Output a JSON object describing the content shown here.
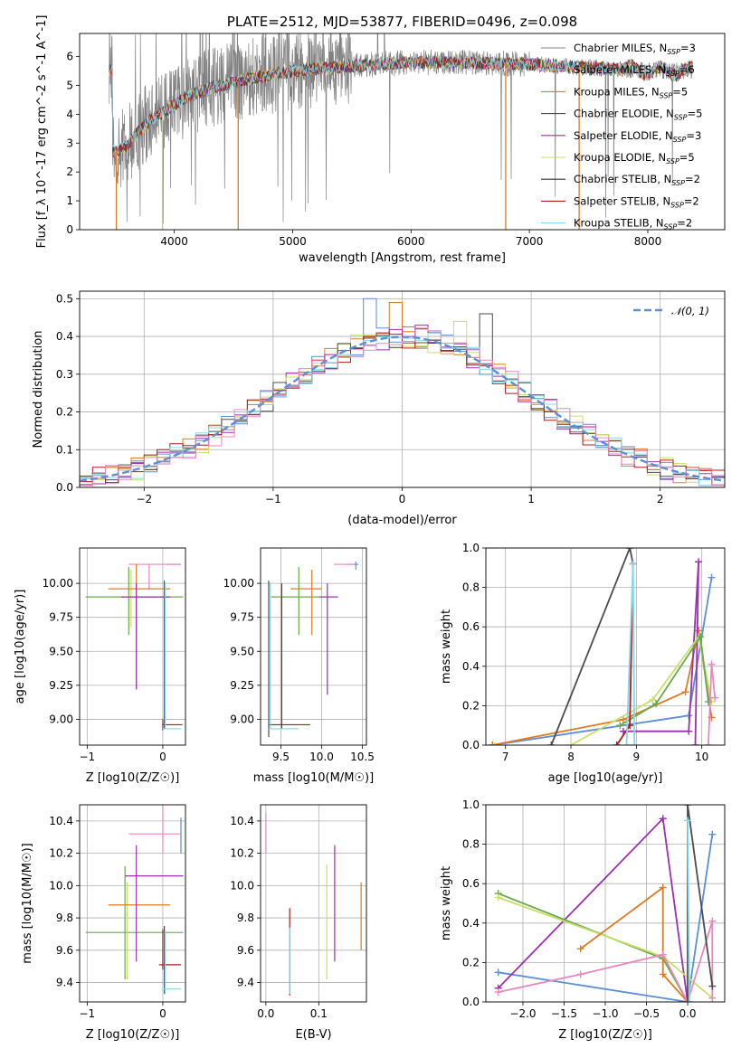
{
  "chart_data": [
    {
      "id": "spectrum",
      "type": "line",
      "title": "PLATE=2512, MJD=53877, FIBERID=0496, z=0.098",
      "xlabel": "wavelength [Angstrom, rest frame]",
      "ylabel": "Flux [f_λ 10^-17 erg cm^-2 s^-1 A^-1]",
      "xlim": [
        3200,
        8650
      ],
      "ylim": [
        0,
        6.8
      ],
      "xticks": [
        4000,
        5000,
        6000,
        7000,
        8000
      ],
      "yticks": [
        0,
        1,
        2,
        3,
        4,
        5,
        6
      ],
      "grid": false,
      "legend_position": "right",
      "observed": {
        "color": "#808080",
        "x_range": [
          3450,
          8380
        ]
      },
      "continuum": [
        [
          3480,
          2.7
        ],
        [
          3600,
          2.9
        ],
        [
          3700,
          3.4
        ],
        [
          3800,
          3.8
        ],
        [
          3950,
          4.2
        ],
        [
          4100,
          4.6
        ],
        [
          4300,
          4.9
        ],
        [
          4500,
          5.1
        ],
        [
          4700,
          5.3
        ],
        [
          5000,
          5.5
        ],
        [
          5300,
          5.6
        ],
        [
          5600,
          5.7
        ],
        [
          6000,
          5.8
        ],
        [
          6400,
          5.8
        ],
        [
          6800,
          5.75
        ],
        [
          7200,
          5.7
        ],
        [
          7600,
          5.6
        ],
        [
          8000,
          5.5
        ],
        [
          8380,
          5.5
        ]
      ],
      "spikes": [
        [
          4540,
          "#e07b22"
        ],
        [
          6800,
          "#e07b22"
        ],
        [
          7420,
          "#e07b22"
        ],
        [
          3900,
          "#b8d96b"
        ],
        [
          3510,
          "#e07b22"
        ]
      ],
      "series": [
        {
          "name": "Chabrier MILES",
          "n_ssp": "3",
          "color": "#808080"
        },
        {
          "name": "Salpeter MILES",
          "n_ssp": "6",
          "color": "#8fd9f0"
        },
        {
          "name": "Kroupa MILES",
          "n_ssp": "5",
          "color": "#e07b22"
        },
        {
          "name": "Chabrier ELODIE",
          "n_ssp": "5",
          "color": "#4d4d4d"
        },
        {
          "name": "Salpeter ELODIE",
          "n_ssp": "3",
          "color": "#9b30b0"
        },
        {
          "name": "Kroupa ELODIE",
          "n_ssp": "5",
          "color": "#c8e068"
        },
        {
          "name": "Chabrier STELIB",
          "n_ssp": "2",
          "color": "#333333"
        },
        {
          "name": "Salpeter STELIB",
          "n_ssp": "2",
          "color": "#b01c1c"
        },
        {
          "name": "Kroupa STELIB",
          "n_ssp": "2",
          "color": "#86d8e8"
        }
      ]
    },
    {
      "id": "residuals",
      "type": "line",
      "xlabel": "(data-model)/error",
      "ylabel": "Normed distribution",
      "xlim": [
        -2.5,
        2.5
      ],
      "ylim": [
        0,
        0.52
      ],
      "xticks": [
        -2,
        -1,
        0,
        1,
        2
      ],
      "yticks": [
        0.0,
        0.1,
        0.2,
        0.3,
        0.4,
        0.5
      ],
      "grid": true,
      "legend_position": "top-right",
      "legend_label": "𝒩(0, 1)",
      "gaussian": {
        "mean": 0,
        "sigma": 1,
        "color": "#5b8fd6"
      },
      "bin_width": 0.1,
      "hist_colors": [
        "#5b8fd6",
        "#e07b22",
        "#9b30b0",
        "#c8e068",
        "#4d4d4d",
        "#b01c1c",
        "#86d8e8",
        "#e887c0"
      ],
      "peaks": [
        0.5,
        0.49,
        0.43,
        0.44,
        0.46
      ]
    },
    {
      "id": "age_vs_Z",
      "type": "scatter",
      "xlabel": "Z [log10(Z/Z☉)]",
      "ylabel": "age  [log10(age/yr)]",
      "xlim": [
        -1.1,
        0.3
      ],
      "ylim": [
        8.81,
        10.26
      ],
      "xticks": [
        -1,
        0
      ],
      "yticks": [
        9.0,
        9.25,
        9.5,
        9.75,
        10.0
      ],
      "grid": true,
      "errorbars": [
        {
          "x": 0.24,
          "y": 10.14,
          "xerr": [
            0.0,
            0.0
          ],
          "yerr": [
            0.06,
            0.06
          ],
          "h": [
            0.06,
            0.24
          ],
          "color": "#5b8fd6"
        },
        {
          "x": -0.18,
          "y": 10.14,
          "h": [
            -0.45,
            0.24
          ],
          "v": [
            9.95,
            10.14
          ],
          "color": "#e887c0"
        },
        {
          "x": -0.45,
          "y": 9.9,
          "h": [
            -1.02,
            0.27
          ],
          "v": [
            9.62,
            10.12
          ],
          "color": "#6aa84f"
        },
        {
          "x": -0.42,
          "y": 9.9,
          "v": [
            9.68,
            10.1
          ],
          "color": "#c8e068"
        },
        {
          "x": -0.35,
          "y": 9.96,
          "h": [
            -0.72,
            0.1
          ],
          "v": [
            9.22,
            10.14
          ],
          "color": "#e07b22"
        },
        {
          "x": -0.35,
          "y": 9.9,
          "h": [
            -0.55,
            0.1
          ],
          "v": [
            9.22,
            10.0
          ],
          "color": "#9b30b0"
        },
        {
          "x": 0.02,
          "y": 9.95,
          "v": [
            8.93,
            10.02
          ],
          "color": "#4d4d4d"
        },
        {
          "x": 0.0,
          "y": 8.96,
          "h": [
            0.0,
            0.26
          ],
          "v": [
            8.92,
            9.0
          ],
          "color": "#b01c1c"
        },
        {
          "x": 0.03,
          "y": 8.93,
          "h": [
            0.0,
            0.24
          ],
          "v": [
            8.93,
            10.0
          ],
          "color": "#86d8e8"
        }
      ]
    },
    {
      "id": "age_vs_mass",
      "type": "scatter",
      "xlabel": "mass [log10(M/M☉)]",
      "ylim": [
        8.81,
        10.26
      ],
      "xlim": [
        9.25,
        10.55
      ],
      "xticks": [
        9.5,
        10.0,
        10.5
      ],
      "yticks": [
        9.0,
        9.25,
        9.5,
        9.75,
        10.0
      ],
      "grid": true,
      "errorbars": [
        {
          "h": [
            10.3,
            10.45
          ],
          "v": [
            10.1,
            10.16
          ],
          "y": 10.14,
          "x": 10.42,
          "color": "#5b8fd6"
        },
        {
          "h": [
            10.15,
            10.4
          ],
          "y": 10.14,
          "x": 10.32,
          "color": "#e887c0"
        },
        {
          "h": [
            9.38,
            10.0
          ],
          "v": [
            9.62,
            10.12
          ],
          "y": 9.9,
          "x": 9.72,
          "color": "#6aa84f"
        },
        {
          "h": [
            9.62,
            10.0
          ],
          "v": [
            9.62,
            10.1
          ],
          "y": 9.96,
          "x": 9.88,
          "color": "#e07b22"
        },
        {
          "h": [
            9.98,
            10.2
          ],
          "v": [
            9.18,
            10.0
          ],
          "y": 9.9,
          "x": 10.07,
          "color": "#9b30b0"
        },
        {
          "v": [
            8.87,
            10.02
          ],
          "x": 9.35,
          "y": 9.95,
          "color": "#4d4d4d"
        },
        {
          "h": [
            9.35,
            9.86
          ],
          "v": [
            8.93,
            10.0
          ],
          "y": 8.96,
          "x": 9.51,
          "color": "#b01c1c"
        },
        {
          "h": [
            9.35,
            9.72
          ],
          "v": [
            8.93,
            10.0
          ],
          "y": 8.93,
          "x": 9.37,
          "color": "#86d8e8"
        }
      ]
    },
    {
      "id": "massweight_vs_age",
      "type": "line",
      "xlabel": "age  [log10(age/yr)]",
      "ylabel": "mass weight",
      "xlim": [
        6.7,
        10.35
      ],
      "ylim": [
        0,
        1.0
      ],
      "xticks": [
        7,
        8,
        9,
        10
      ],
      "yticks": [
        0.0,
        0.2,
        0.4,
        0.6,
        0.8,
        1.0
      ],
      "grid": true,
      "series": [
        {
          "color": "#5b8fd6",
          "x": [
            6.8,
            9.8,
            10.15
          ],
          "y": [
            0.0,
            0.15,
            0.85
          ]
        },
        {
          "color": "#e07b22",
          "x": [
            6.8,
            8.8,
            9.75,
            9.95,
            10.15
          ],
          "y": [
            0.0,
            0.13,
            0.27,
            0.58,
            0.14
          ]
        },
        {
          "color": "#4d4d4d",
          "x": [
            7.7,
            8.9,
            8.95
          ],
          "y": [
            0.0,
            1.0,
            0.92
          ]
        },
        {
          "color": "#9b30b0",
          "x": [
            8.8,
            9.8,
            9.95,
            9.9
          ],
          "y": [
            0.07,
            0.07,
            0.93,
            0.0
          ]
        },
        {
          "color": "#c8e068",
          "x": [
            8.0,
            9.25,
            9.95,
            10.15
          ],
          "y": [
            0.0,
            0.23,
            0.55,
            0.22
          ]
        },
        {
          "color": "#6aa84f",
          "x": [
            8.75,
            9.3,
            9.98,
            10.1
          ],
          "y": [
            0.1,
            0.21,
            0.55,
            0.22
          ]
        },
        {
          "color": "#b01c1c",
          "x": [
            8.7,
            8.9,
            8.95
          ],
          "y": [
            0.0,
            0.1,
            0.92
          ]
        },
        {
          "color": "#86d8e8",
          "x": [
            8.85,
            8.95,
            8.97
          ],
          "y": [
            0.0,
            0.92,
            0.0
          ]
        },
        {
          "color": "#e887c0",
          "x": [
            10.1,
            10.15,
            10.2
          ],
          "y": [
            0.0,
            0.41,
            0.24
          ]
        }
      ]
    },
    {
      "id": "mass_vs_Z",
      "type": "scatter",
      "xlabel": "Z [log10(Z/Z☉)]",
      "ylabel": "mass [log10(M/M☉)]",
      "xlim": [
        -1.1,
        0.3
      ],
      "ylim": [
        9.28,
        10.5
      ],
      "xticks": [
        -1,
        0
      ],
      "yticks": [
        9.4,
        9.6,
        9.8,
        10.0,
        10.2,
        10.4
      ],
      "grid": true,
      "errorbars": [
        {
          "x": 0.24,
          "v": [
            10.2,
            10.42
          ],
          "color": "#5b8fd6"
        },
        {
          "x": 0.0,
          "h": [
            -0.45,
            0.24
          ],
          "y": 10.32,
          "v": [
            10.2,
            10.5
          ],
          "color": "#e887c0"
        },
        {
          "x": -0.5,
          "h": [
            -1.02,
            0.27
          ],
          "y": 9.71,
          "v": [
            9.42,
            10.12
          ],
          "color": "#6aa84f"
        },
        {
          "x": -0.47,
          "v": [
            9.42,
            10.02
          ],
          "color": "#c8e068"
        },
        {
          "x": -0.35,
          "h": [
            -0.72,
            0.1
          ],
          "y": 9.88,
          "color": "#e07b22"
        },
        {
          "x": -0.35,
          "h": [
            -0.5,
            0.27
          ],
          "y": 10.06,
          "v": [
            9.53,
            10.25
          ],
          "color": "#9b30b0"
        },
        {
          "x": 0.02,
          "v": [
            9.33,
            9.75
          ],
          "color": "#4d4d4d"
        },
        {
          "x": 0.0,
          "h": [
            -0.05,
            0.24
          ],
          "y": 9.51,
          "v": [
            9.48,
            9.73
          ],
          "color": "#b01c1c"
        },
        {
          "x": 0.03,
          "h": [
            0.0,
            0.24
          ],
          "y": 9.36,
          "v": [
            9.33,
            9.72
          ],
          "color": "#86d8e8"
        }
      ]
    },
    {
      "id": "mass_vs_ebv",
      "type": "scatter",
      "xlabel": "E(B-V)",
      "xlim": [
        -0.01,
        0.19
      ],
      "ylim": [
        9.28,
        10.5
      ],
      "xticks": [
        0.0,
        0.1
      ],
      "yticks": [
        9.4,
        9.6,
        9.8,
        10.0,
        10.2,
        10.4
      ],
      "grid": true,
      "errorbars": [
        {
          "x": 0.0,
          "v": [
            10.2,
            10.45
          ],
          "color": "#e887c0"
        },
        {
          "x": 0.045,
          "v": [
            9.32,
            9.86
          ],
          "color": "#b01c1c"
        },
        {
          "x": 0.045,
          "v": [
            9.33,
            9.74
          ],
          "color": "#86d8e8"
        },
        {
          "x": 0.115,
          "v": [
            9.42,
            10.13
          ],
          "color": "#c8e068"
        },
        {
          "x": 0.13,
          "v": [
            9.53,
            10.25
          ],
          "color": "#9b30b0"
        },
        {
          "x": 0.18,
          "v": [
            9.6,
            10.02
          ],
          "color": "#e07b22"
        }
      ]
    },
    {
      "id": "massweight_vs_Z",
      "type": "line",
      "xlabel": "Z [log10(Z/Z☉)]",
      "ylabel": "mass weight",
      "xlim": [
        -2.45,
        0.45
      ],
      "ylim": [
        0,
        1.0
      ],
      "xticks": [
        -2.0,
        -1.5,
        -1.0,
        -0.5,
        0.0
      ],
      "yticks": [
        0.0,
        0.2,
        0.4,
        0.6,
        0.8,
        1.0
      ],
      "grid": true,
      "series": [
        {
          "color": "#5b8fd6",
          "x": [
            -2.3,
            0.0,
            0.3
          ],
          "y": [
            0.15,
            0.0,
            0.85
          ]
        },
        {
          "color": "#9b30b0",
          "x": [
            -2.3,
            -0.3,
            0.0
          ],
          "y": [
            0.07,
            0.93,
            0.0
          ]
        },
        {
          "color": "#6aa84f",
          "x": [
            -2.3,
            -0.3,
            0.0
          ],
          "y": [
            0.55,
            0.22,
            0.0
          ]
        },
        {
          "color": "#c8e068",
          "x": [
            -2.3,
            -0.3,
            0.3
          ],
          "y": [
            0.53,
            0.23,
            0.02
          ]
        },
        {
          "color": "#e07b22",
          "x": [
            -1.3,
            -0.3,
            -0.3,
            0.0
          ],
          "y": [
            0.27,
            0.58,
            0.14,
            0.0
          ]
        },
        {
          "color": "#e887c0",
          "x": [
            -2.3,
            -1.3,
            -0.3,
            0.0,
            0.3,
            0.3
          ],
          "y": [
            0.05,
            0.14,
            0.24,
            0.0,
            0.41,
            0.02
          ]
        },
        {
          "color": "#4d4d4d",
          "x": [
            0.0,
            0.0,
            0.3
          ],
          "y": [
            0.0,
            1.0,
            0.08
          ]
        },
        {
          "color": "#86d8e8",
          "x": [
            0.0,
            0.02
          ],
          "y": [
            0.92,
            0.0
          ]
        }
      ]
    }
  ]
}
